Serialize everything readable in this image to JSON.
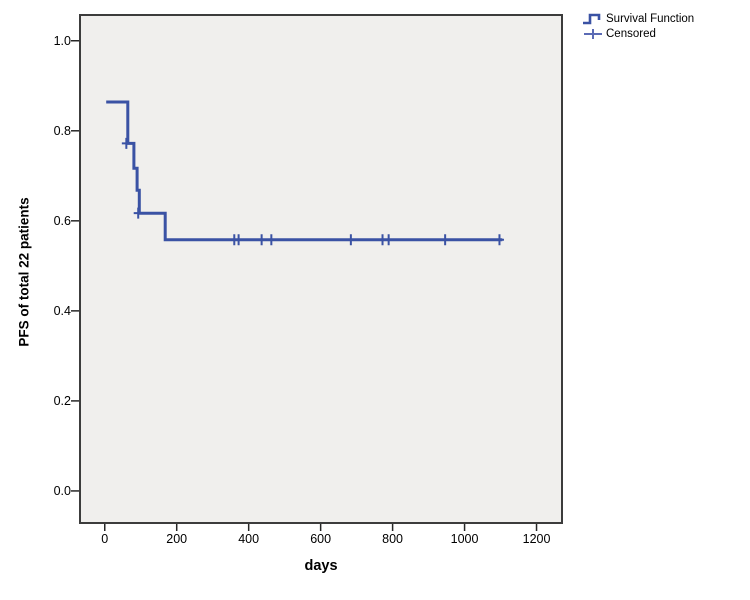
{
  "colors": {
    "curve": "#3A52A4",
    "censor_mark": "#3A52A4",
    "legend_censor_icon": "#5B6BB5",
    "plot_background": "#F0EFED",
    "frame": "#3C3C3C",
    "tick": "#262626",
    "text": "#000000"
  },
  "chart_data": {
    "type": "line",
    "variant": "kaplan-meier-step",
    "title": "",
    "xlabel": "days",
    "ylabel": "PFS of total 22 patients",
    "xlim": [
      -66,
      1268
    ],
    "ylim": [
      -0.069,
      1.055
    ],
    "xticks": [
      0,
      200,
      400,
      600,
      800,
      1000,
      1200
    ],
    "yticks": [
      0.0,
      0.2,
      0.4,
      0.6,
      0.8,
      1.0
    ],
    "grid": false,
    "legend_position": "top-right-outside",
    "legend": {
      "items": [
        {
          "label": "Survival Function",
          "symbol": "step-line"
        },
        {
          "label": "Censored",
          "symbol": "plus"
        }
      ]
    },
    "series": [
      {
        "name": "Survival Function",
        "draw": "step-vertices",
        "points": [
          [
            4,
            0.864
          ],
          [
            64,
            0.864
          ],
          [
            64,
            0.772
          ],
          [
            81,
            0.772
          ],
          [
            81,
            0.717
          ],
          [
            90,
            0.717
          ],
          [
            90,
            0.668
          ],
          [
            96,
            0.668
          ],
          [
            96,
            0.617
          ],
          [
            168,
            0.617
          ],
          [
            168,
            0.558
          ],
          [
            1105,
            0.558
          ]
        ]
      }
    ],
    "censored": {
      "name": "Censored",
      "points": [
        [
          60,
          0.772
        ],
        [
          93,
          0.617
        ],
        [
          360,
          0.558
        ],
        [
          372,
          0.558
        ],
        [
          436,
          0.558
        ],
        [
          463,
          0.558
        ],
        [
          684,
          0.558
        ],
        [
          772,
          0.558
        ],
        [
          789,
          0.558
        ],
        [
          946,
          0.558
        ],
        [
          1097,
          0.558
        ]
      ]
    }
  }
}
